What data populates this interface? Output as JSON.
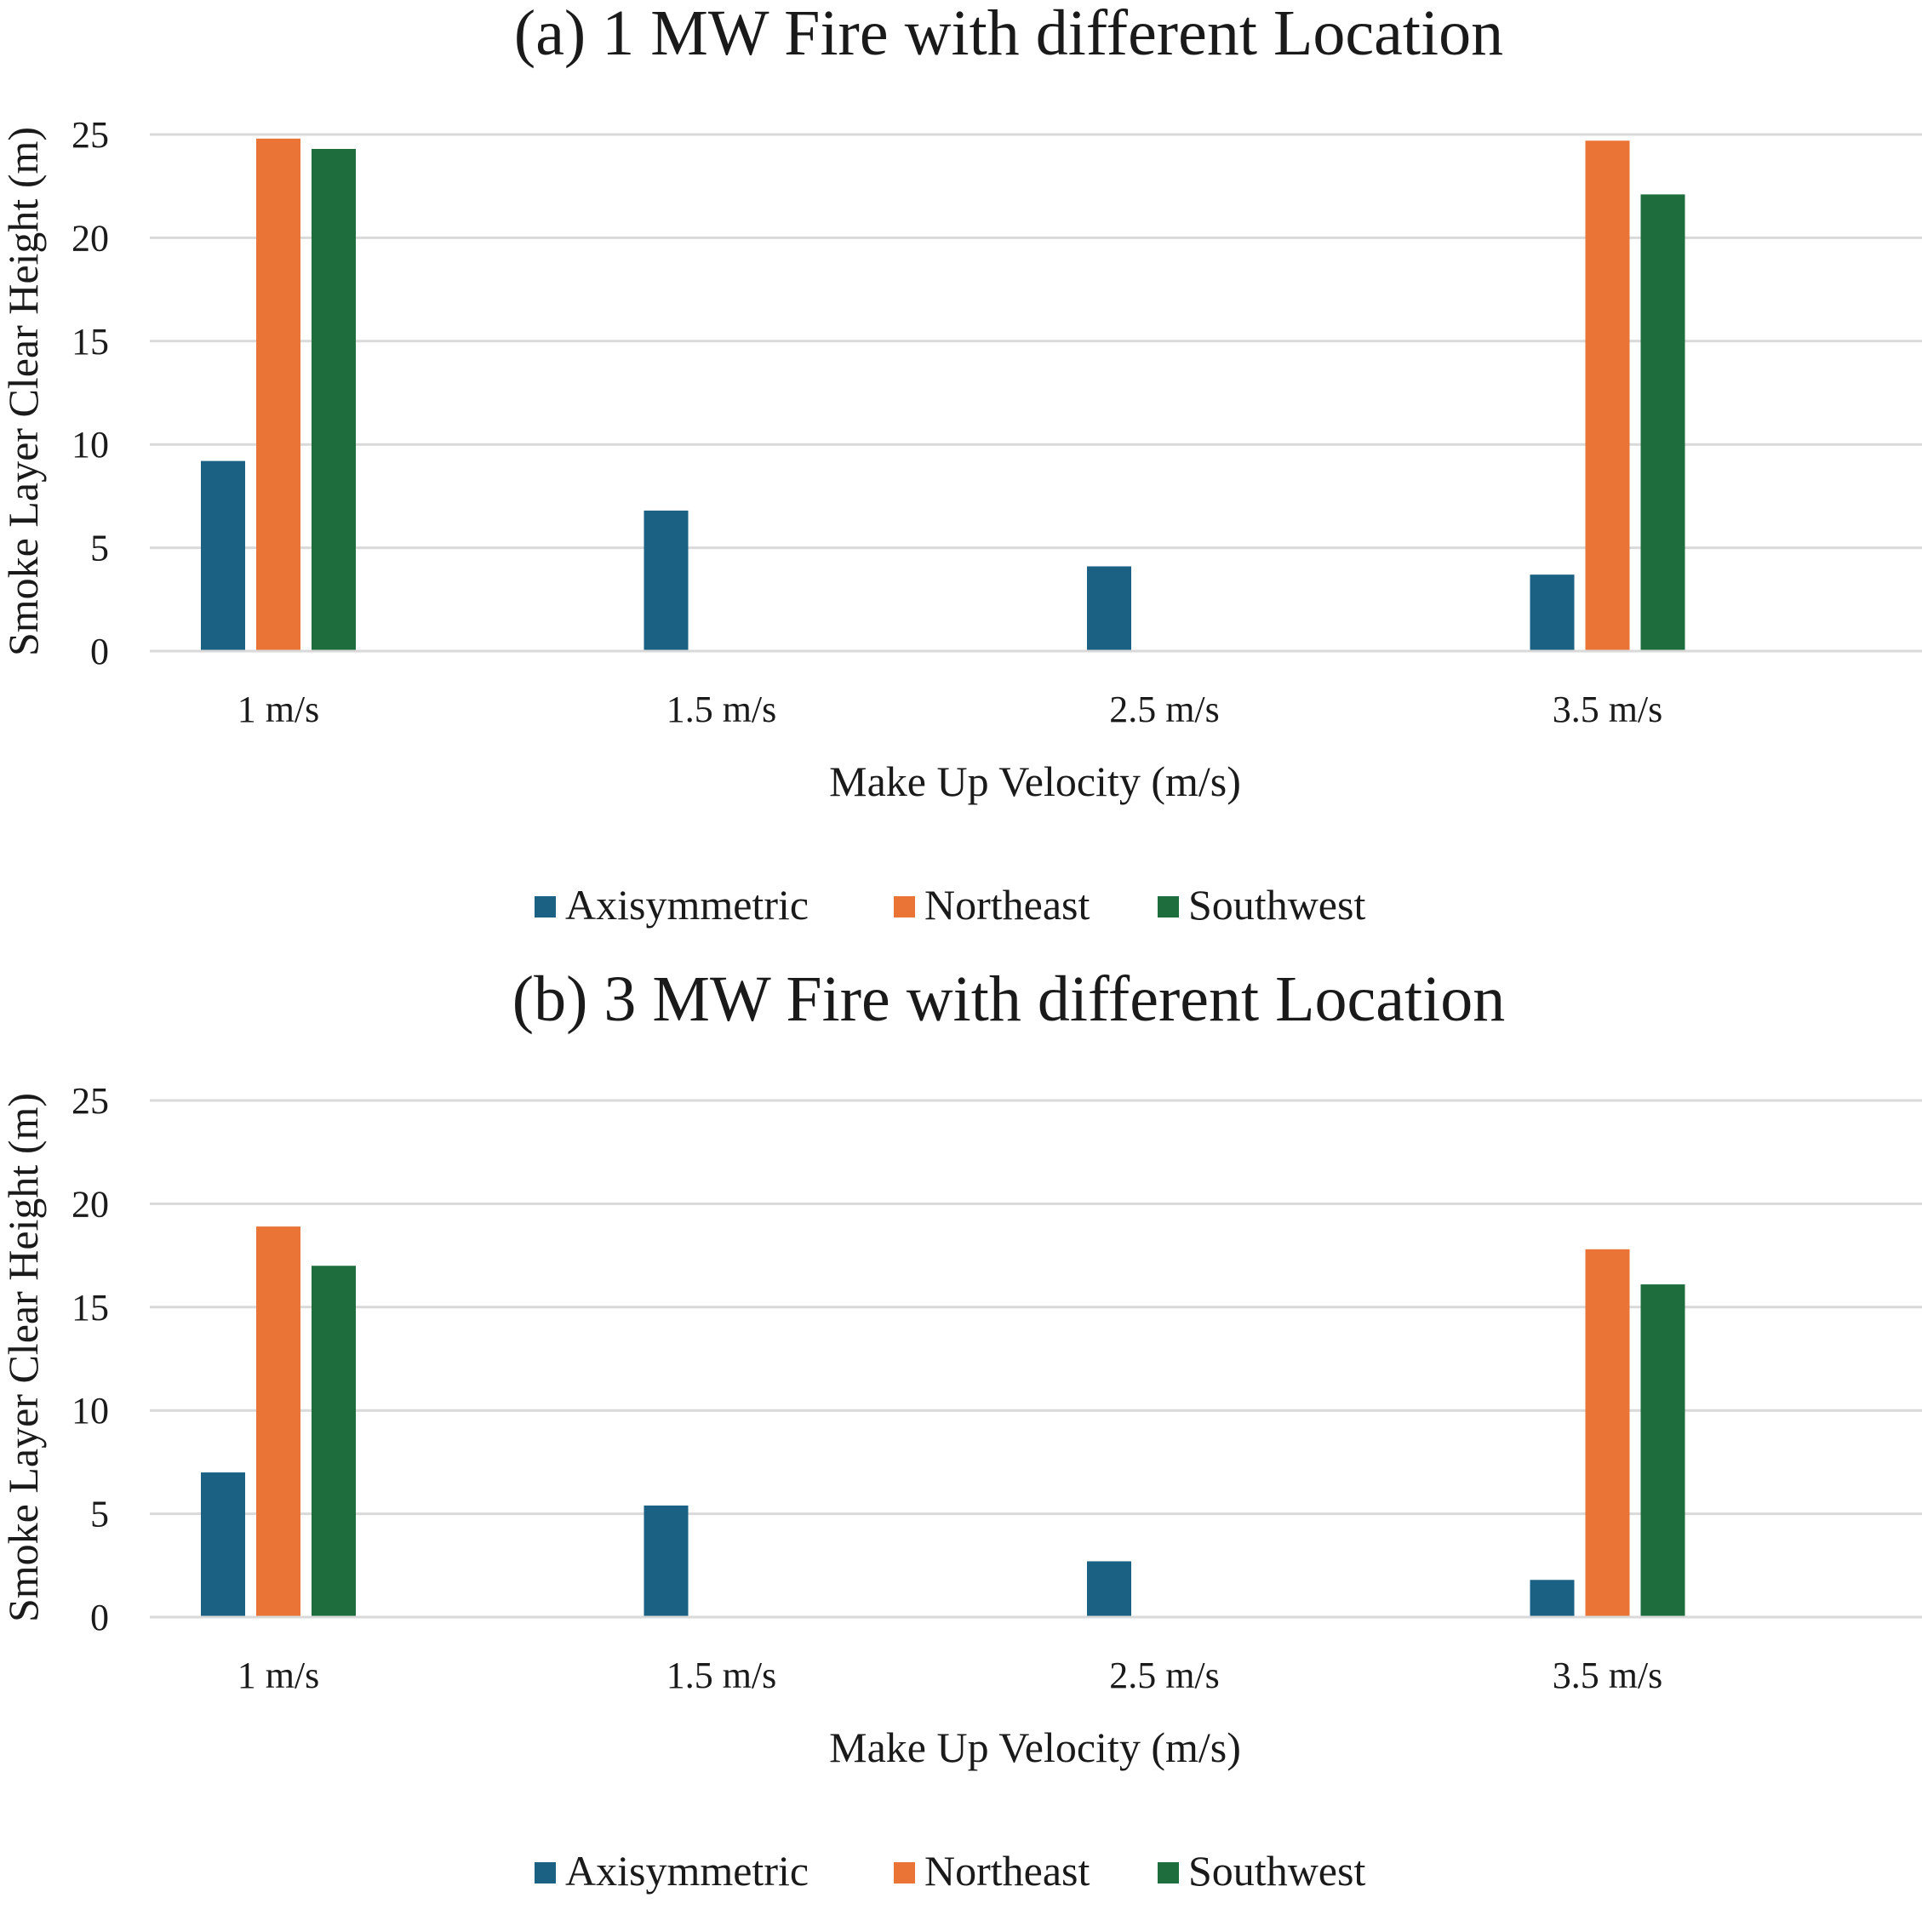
{
  "chart_data": [
    {
      "type": "bar",
      "title": "(a) 1 MW Fire with different Location",
      "xlabel": "Make Up Velocity (m/s)",
      "ylabel": "Smoke Layer Clear Height (m)",
      "ylim": [
        0,
        25
      ],
      "yticks": [
        0,
        5,
        10,
        15,
        20,
        25
      ],
      "categories": [
        "1 m/s",
        "1.5 m/s",
        "2.5 m/s",
        "3.5 m/s"
      ],
      "series": [
        {
          "name": "Axisymmetric",
          "color": "#1a6183",
          "values": [
            9.2,
            6.8,
            4.1,
            3.7
          ]
        },
        {
          "name": "Northeast",
          "color": "#e97436",
          "values": [
            24.8,
            null,
            null,
            24.7
          ]
        },
        {
          "name": "Southwest",
          "color": "#1e6e3d",
          "values": [
            24.3,
            null,
            null,
            22.1
          ]
        }
      ],
      "legend": "bottom",
      "grid": true
    },
    {
      "type": "bar",
      "title": "(b) 3 MW Fire with different Location",
      "xlabel": "Make Up Velocity (m/s)",
      "ylabel": "Smoke Layer Clear Height (m)",
      "ylim": [
        0,
        25
      ],
      "yticks": [
        0,
        5,
        10,
        15,
        20,
        25
      ],
      "categories": [
        "1 m/s",
        "1.5 m/s",
        "2.5 m/s",
        "3.5 m/s"
      ],
      "series": [
        {
          "name": "Axisymmetric",
          "color": "#1a6183",
          "values": [
            7.0,
            5.4,
            2.7,
            1.8
          ]
        },
        {
          "name": "Northeast",
          "color": "#e97436",
          "values": [
            18.9,
            null,
            null,
            17.8
          ]
        },
        {
          "name": "Southwest",
          "color": "#1e6e3d",
          "values": [
            17.0,
            null,
            null,
            16.1
          ]
        }
      ],
      "legend": "bottom",
      "grid": true
    }
  ]
}
